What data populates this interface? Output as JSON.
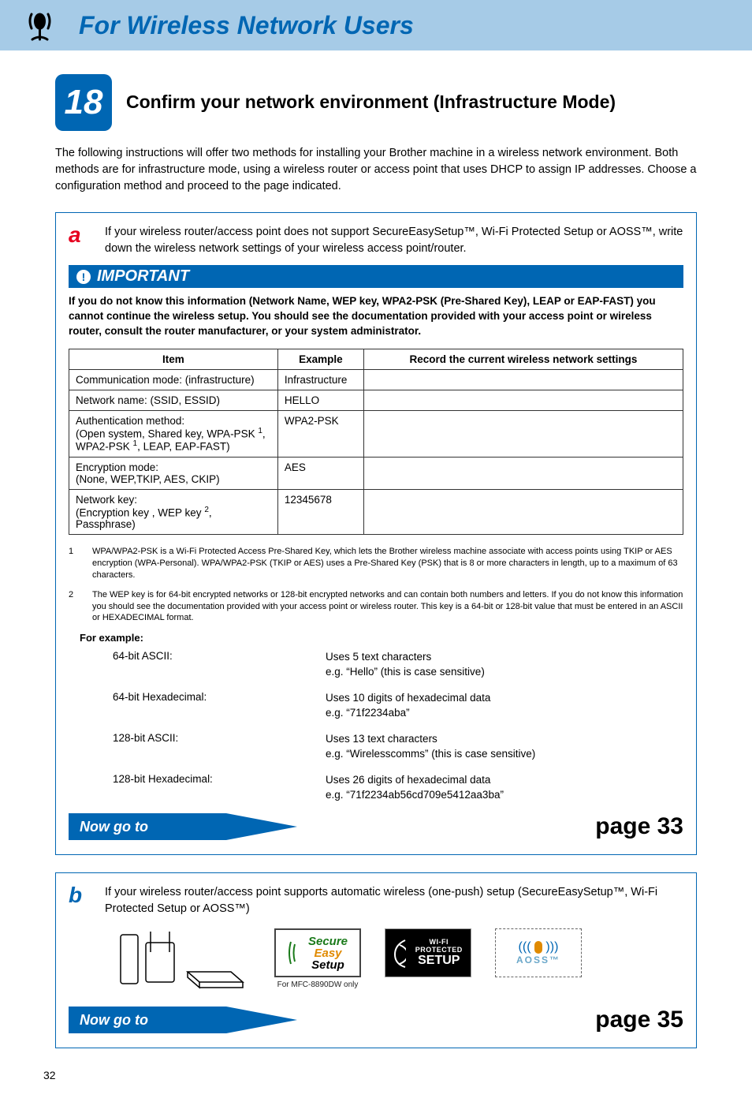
{
  "header": {
    "title": "For Wireless Network Users"
  },
  "step": {
    "number": "18",
    "title": "Confirm your network environment (Infrastructure Mode)"
  },
  "intro": "The following instructions will offer two methods for installing your Brother machine in a wireless network environment. Both methods are for infrastructure mode, using a wireless router or access point that uses DHCP to assign IP addresses. Choose a configuration method and proceed to the page indicated.",
  "optionA": {
    "letter": "a",
    "text": "If your wireless router/access point does not support SecureEasySetup™, Wi-Fi Protected Setup or AOSS™, write down the wireless network settings of your wireless access point/router.",
    "important_label": "IMPORTANT",
    "important_text": "If you do not know this information (Network Name, WEP key, WPA2-PSK (Pre-Shared Key), LEAP or EAP-FAST) you cannot continue the wireless setup. You should see the documentation provided with your access point or wireless router, consult the router manufacturer, or your system administrator.",
    "table": {
      "headers": [
        "Item",
        "Example",
        "Record the current wireless network settings"
      ],
      "rows": [
        {
          "item": "Communication mode: (infrastructure)",
          "example": "Infrastructure",
          "record": ""
        },
        {
          "item": "Network name: (SSID, ESSID)",
          "example": "HELLO",
          "record": ""
        },
        {
          "item_html": "Authentication method:<br>(Open system, Shared key, WPA-PSK <span class='sup'>1</span>, WPA2-PSK <span class='sup'>1</span>, LEAP, EAP-FAST)",
          "example": "WPA2-PSK",
          "record": ""
        },
        {
          "item_html": "Encryption mode:<br>(None, WEP,TKIP, AES, CKIP)",
          "example": "AES",
          "record": ""
        },
        {
          "item_html": "Network key:<br>(Encryption key , WEP key <span class='sup'>2</span>, Passphrase)",
          "example": "12345678",
          "record": ""
        }
      ]
    },
    "footnotes": [
      {
        "num": "1",
        "text": "WPA/WPA2-PSK is a Wi-Fi Protected Access Pre-Shared Key, which lets the Brother wireless machine associate with access points using TKIP or AES encryption (WPA-Personal). WPA/WPA2-PSK (TKIP or AES) uses a Pre-Shared Key (PSK) that is 8 or more characters in length, up to a maximum of 63 characters."
      },
      {
        "num": "2",
        "text": "The WEP key is for 64-bit encrypted networks or 128-bit encrypted networks and can contain both numbers and letters. If you do not know this information you should see the documentation provided with your access point or wireless router. This key is a 64-bit or 128-bit value that must be entered in an ASCII or HEXADECIMAL format."
      }
    ],
    "for_example_label": "For example:",
    "examples": [
      {
        "label": "64-bit ASCII:",
        "desc": "Uses 5 text characters\ne.g. \"Hello\" (this is case sensitive)"
      },
      {
        "label": "64-bit Hexadecimal:",
        "desc": "Uses 10 digits of hexadecimal data\ne.g. \"71f2234aba\""
      },
      {
        "label": "128-bit ASCII:",
        "desc": "Uses 13 text characters\ne.g. \"Wirelesscomms\" (this is case sensitive)"
      },
      {
        "label": "128-bit Hexadecimal:",
        "desc": "Uses 26 digits of hexadecimal data\ne.g. \"71f2234ab56cd709e5412aa3ba\""
      }
    ],
    "now_go_to": "Now go to",
    "page_ref": "page 33"
  },
  "optionB": {
    "letter": "b",
    "text": "If your wireless router/access point supports automatic wireless (one-push) setup (SecureEasySetup™, Wi-Fi Protected Setup or AOSS™)",
    "ses_caption": "For MFC-8890DW only",
    "ses_lines": [
      "Secure",
      "Easy",
      "Setup"
    ],
    "wps_top": "WI-FI PROTECTED",
    "wps_bot": "SETUP",
    "aoss_label": "AOSS™",
    "now_go_to": "Now go to",
    "page_ref": "page 35"
  },
  "page_number": "32",
  "colors": {
    "header_bg": "#a6cbe7",
    "primary_blue": "#0066b3",
    "letter_a": "#e6001f",
    "letter_b": "#0066b3"
  }
}
